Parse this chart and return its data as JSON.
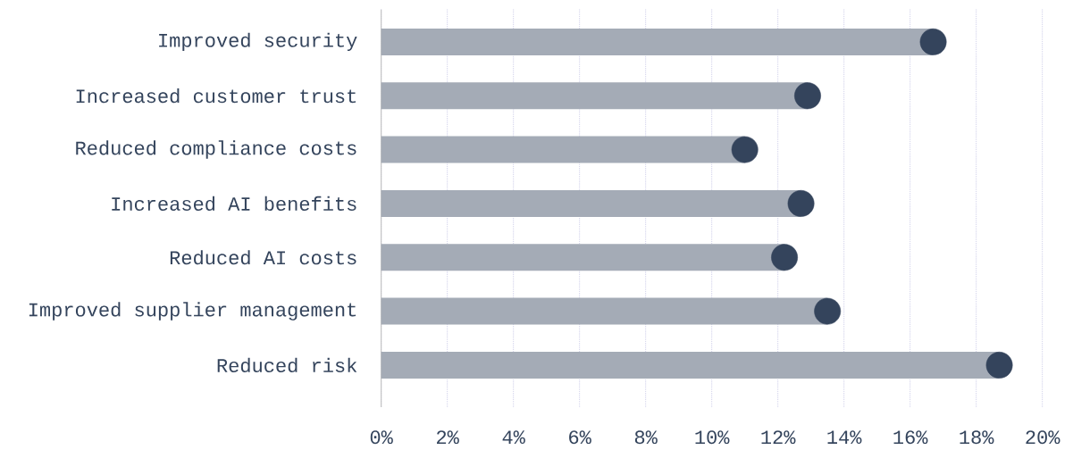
{
  "chart_data": {
    "type": "lollipop",
    "orientation": "horizontal",
    "categories": [
      "Improved security",
      "Increased customer trust",
      "Reduced compliance costs",
      "Increased AI benefits",
      "Reduced AI costs",
      "Improved supplier management",
      "Reduced risk"
    ],
    "values": [
      16.7,
      12.9,
      11.0,
      12.7,
      12.2,
      13.5,
      18.7
    ],
    "color": "#34445c",
    "marker": "circle",
    "grid": "x",
    "xlim": [
      0,
      20
    ],
    "xticks": [
      {
        "value": 0,
        "label": "0%"
      },
      {
        "value": 2,
        "label": "2%"
      },
      {
        "value": 4,
        "label": "4%"
      },
      {
        "value": 6,
        "label": "6%"
      },
      {
        "value": 8,
        "label": "8%"
      },
      {
        "value": 10,
        "label": "10%"
      },
      {
        "value": 12,
        "label": "12%"
      },
      {
        "value": 14,
        "label": "14%"
      },
      {
        "value": 16,
        "label": "16%"
      },
      {
        "value": 18,
        "label": "18%"
      },
      {
        "value": 20,
        "label": "20%"
      }
    ]
  }
}
